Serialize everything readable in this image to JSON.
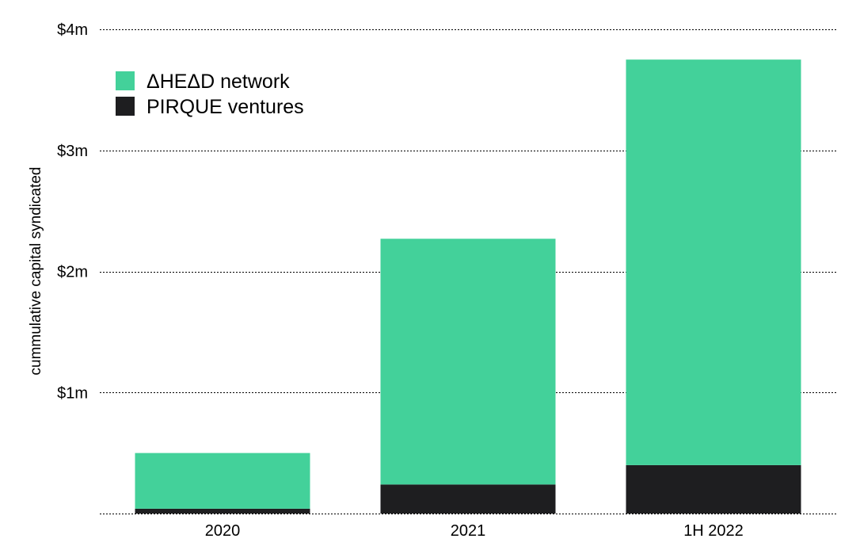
{
  "chart_data": {
    "type": "bar",
    "stacked": true,
    "categories": [
      "2020",
      "2021",
      "1H 2022"
    ],
    "series": [
      {
        "name": "PIRQUE ventures",
        "color": "#1e1e20",
        "values": [
          0.04,
          0.24,
          0.4
        ]
      },
      {
        "name": "ΔHEΔD network",
        "color": "#43d19a",
        "values": [
          0.46,
          2.03,
          3.35
        ]
      }
    ],
    "totals": [
      0.5,
      2.27,
      3.75
    ],
    "ylabel": "cummulative capital syndicated",
    "ylim": [
      0,
      4
    ],
    "y_ticks": [
      {
        "value": 1,
        "label": "$1m"
      },
      {
        "value": 2,
        "label": "$2m"
      },
      {
        "value": 3,
        "label": "$3m"
      },
      {
        "value": 4,
        "label": "$4m"
      }
    ],
    "grid": true,
    "legend": {
      "placement": "top-left",
      "entries": [
        {
          "label": "ΔHEΔD network",
          "color": "#43d19a"
        },
        {
          "label": "PIRQUE ventures",
          "color": "#1e1e20"
        }
      ]
    }
  }
}
